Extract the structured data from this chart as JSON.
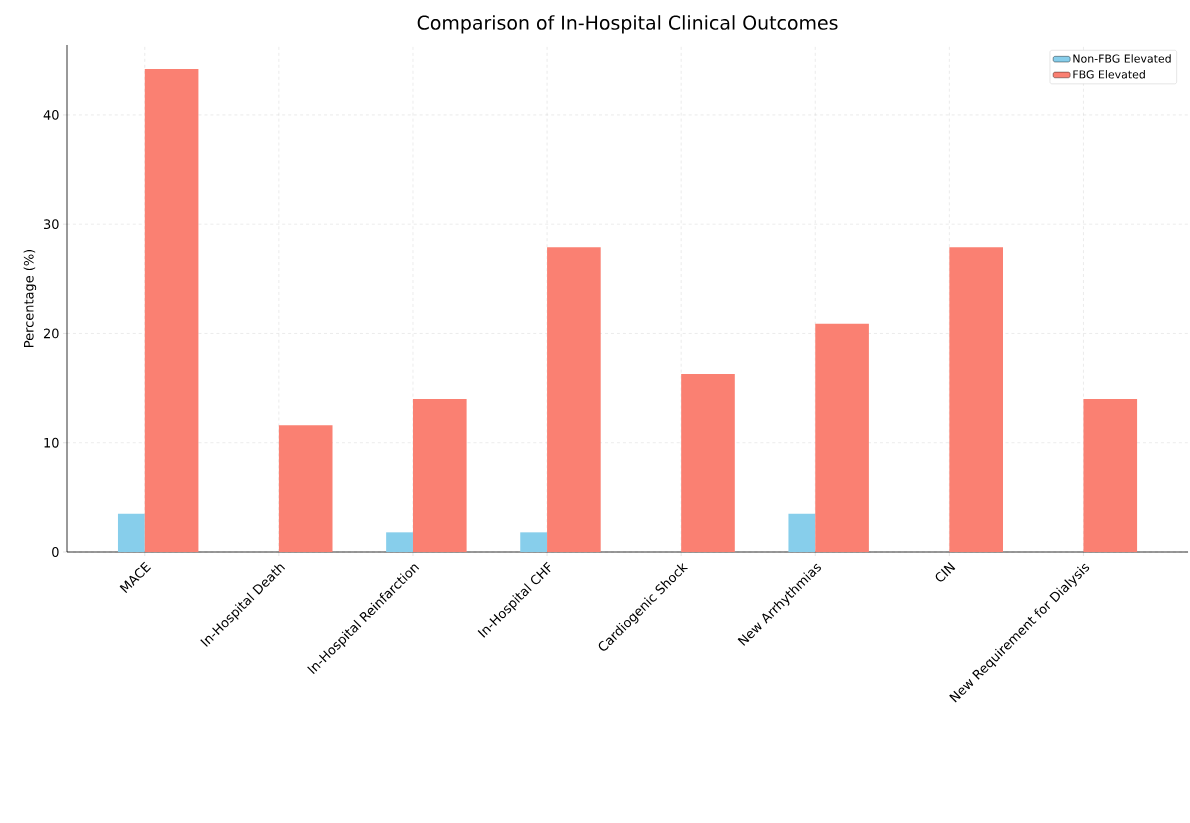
{
  "chart_data": {
    "type": "bar",
    "title": "Comparison of In-Hospital Clinical Outcomes",
    "ylabel": "Percentage (%)",
    "categories": [
      "MACE",
      "In-Hospital Death",
      "In-Hospital Reinfarction",
      "In-Hospital CHF",
      "Cardiogenic Shock",
      "New Arrhythmias",
      "CIN",
      "New Requirement for Dialysis"
    ],
    "series": [
      {
        "name": "Non-FBG Elevated",
        "color": "#87ceeb",
        "values": [
          3.5,
          0,
          1.8,
          1.8,
          0,
          3.5,
          0,
          0
        ]
      },
      {
        "name": "FBG Elevated",
        "color": "#fa8072",
        "values": [
          44.2,
          11.6,
          14.0,
          27.9,
          16.3,
          20.9,
          27.9,
          14.0
        ]
      }
    ],
    "ylim": [
      0,
      46.4
    ],
    "yticks": [
      0,
      10,
      20,
      30,
      40
    ],
    "grid": true,
    "legend": "top right"
  }
}
